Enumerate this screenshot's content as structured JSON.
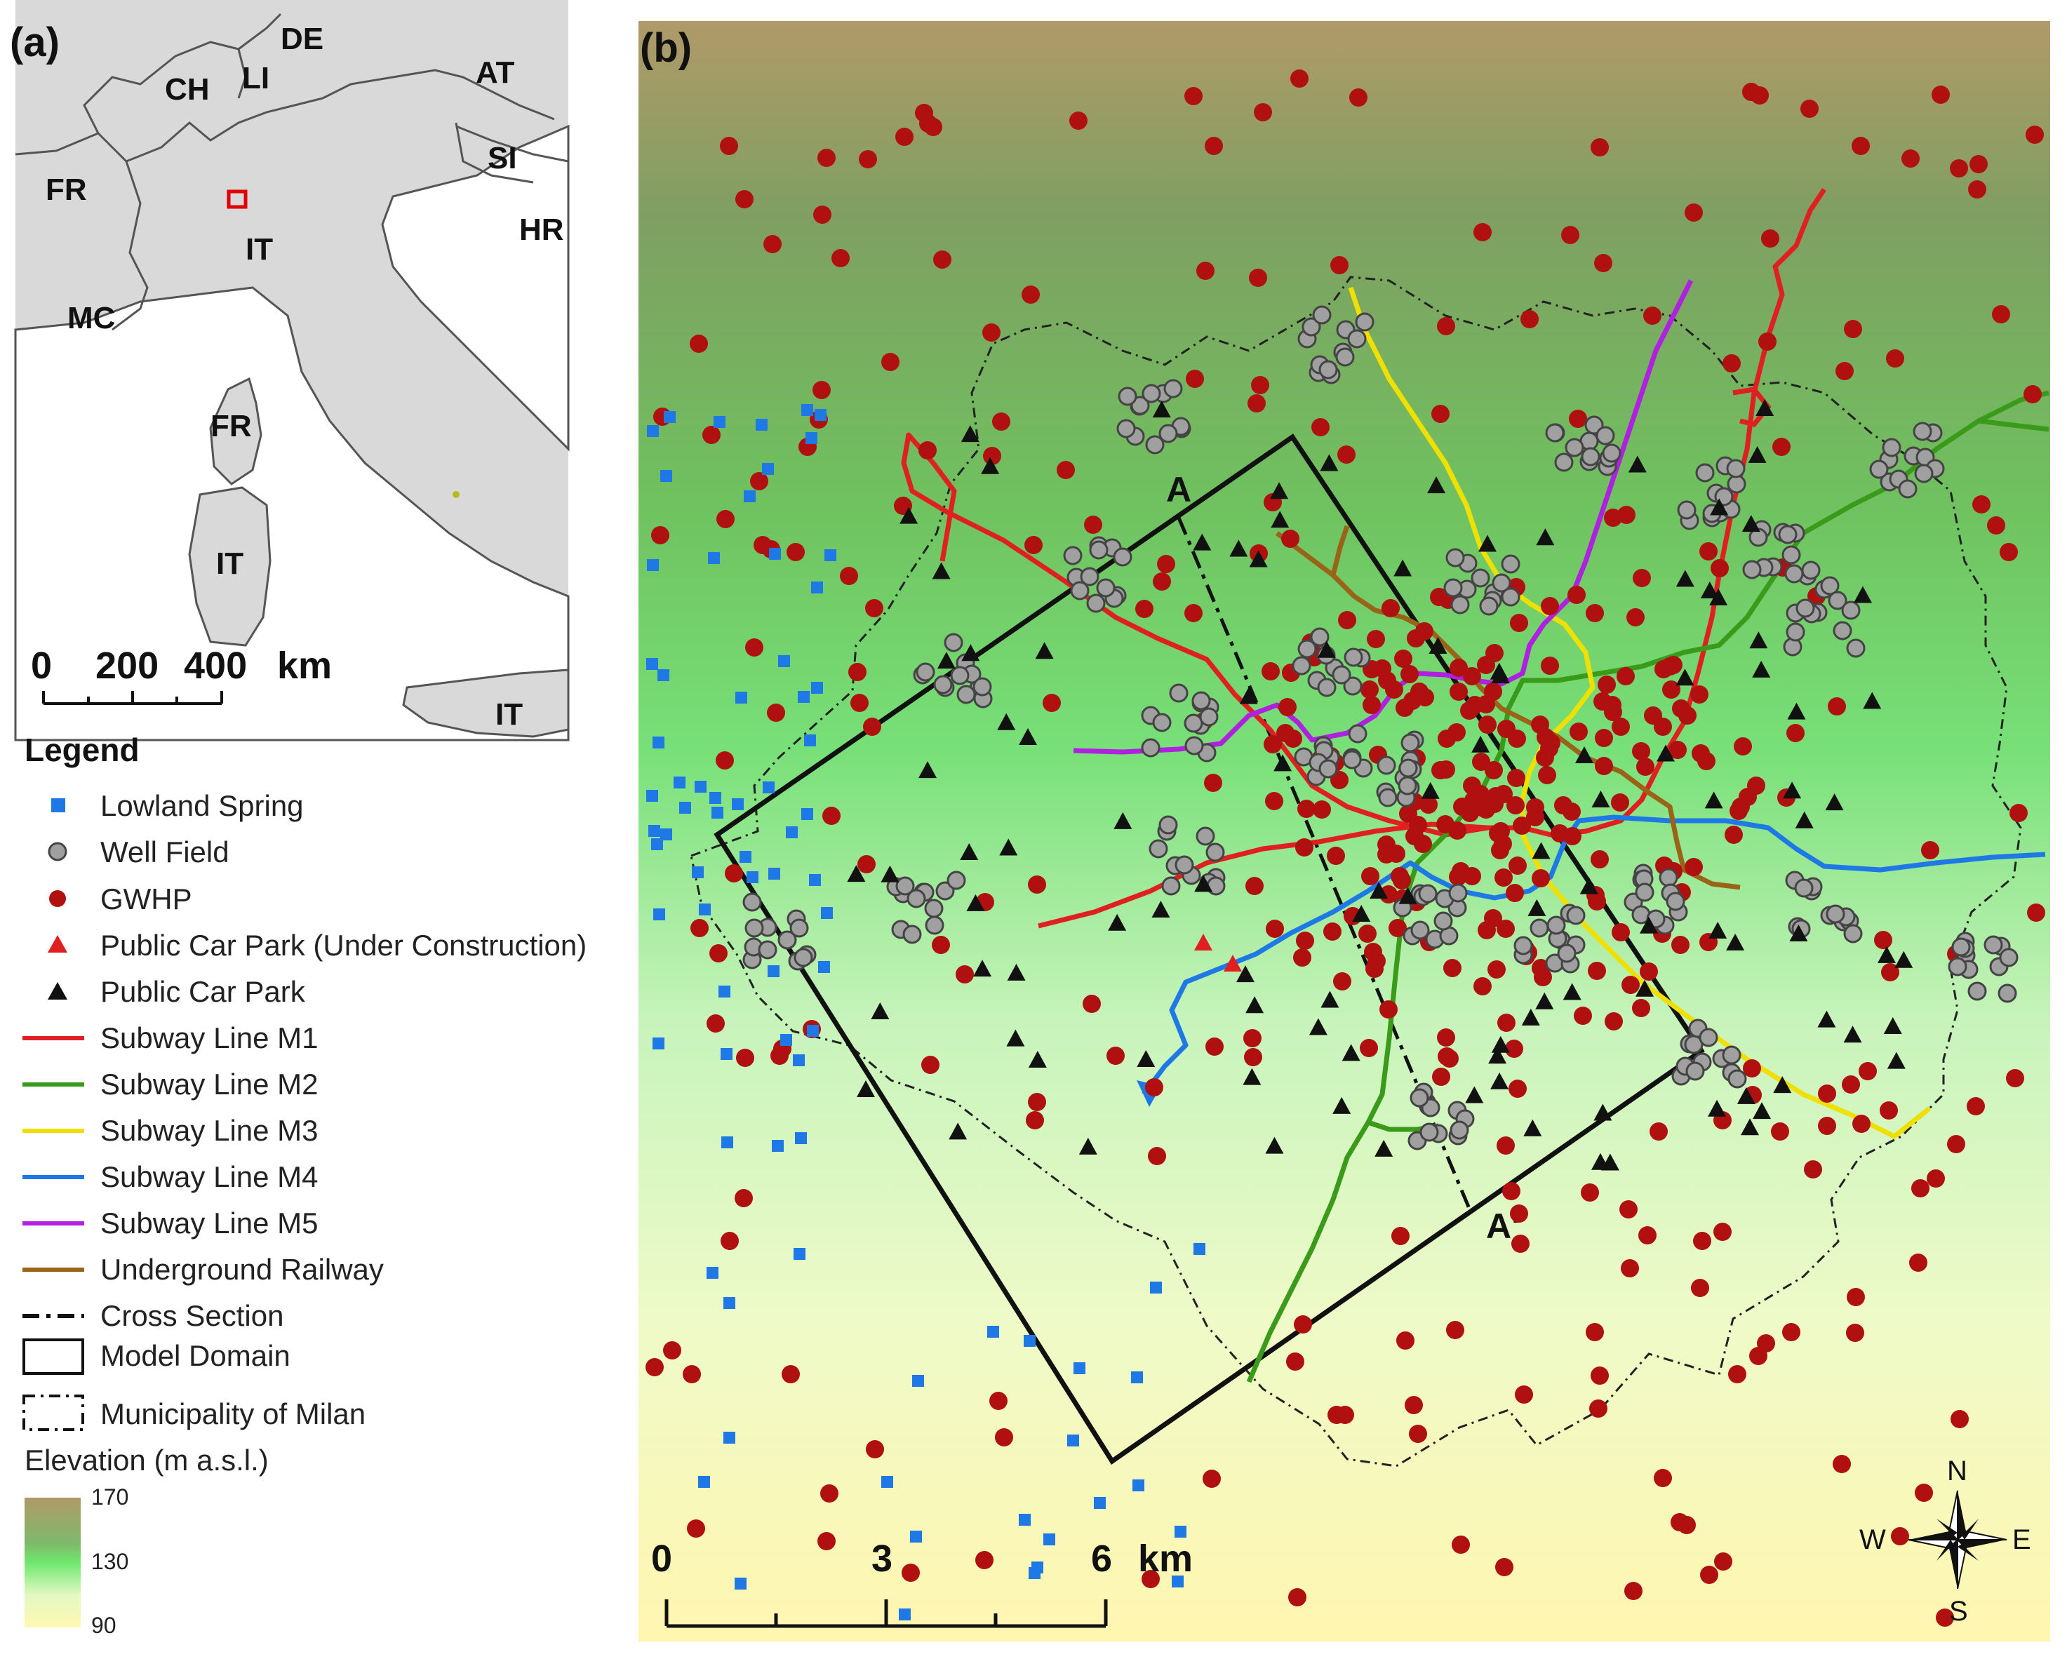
{
  "panels": {
    "a": {
      "tag": "(a)"
    },
    "b": {
      "tag": "(b)"
    }
  },
  "overview_map": {
    "country_labels": [
      "DE",
      "CH",
      "LI",
      "AT",
      "FR",
      "SI",
      "IT",
      "HR",
      "MC",
      "FR",
      "IT",
      "IT"
    ],
    "scale_bar": {
      "ticks": [
        "0",
        "200",
        "400"
      ],
      "unit": "km"
    },
    "study_area_marker_color": "#e00000"
  },
  "legend": {
    "title": "Legend",
    "items": [
      {
        "label": "Lowland Spring",
        "symbol": "square",
        "color": "#1e78e6"
      },
      {
        "label": "Well Field",
        "symbol": "circle-gray",
        "color": "#a0a0a0"
      },
      {
        "label": "GWHP",
        "symbol": "circle",
        "color": "#b01010"
      },
      {
        "label": "Public Car Park (Under Construction)",
        "symbol": "triangle",
        "color": "#e02020"
      },
      {
        "label": "Public Car Park",
        "symbol": "triangle",
        "color": "#111111"
      },
      {
        "label": "Subway Line M1",
        "symbol": "line",
        "color": "#e02020"
      },
      {
        "label": "Subway Line M2",
        "symbol": "line",
        "color": "#3a9a1a"
      },
      {
        "label": "Subway Line M3",
        "symbol": "line",
        "color": "#f0e000"
      },
      {
        "label": "Subway Line M4",
        "symbol": "line",
        "color": "#1e78e6"
      },
      {
        "label": "Subway Line M5",
        "symbol": "line",
        "color": "#b020e0"
      },
      {
        "label": "Underground Railway",
        "symbol": "line",
        "color": "#9a6418"
      },
      {
        "label": "Cross Section",
        "symbol": "dashdot",
        "color": "#111111"
      },
      {
        "label": "Model Domain",
        "symbol": "box",
        "color": "#111111"
      },
      {
        "label": "Municipality of Milan",
        "symbol": "dashbox",
        "color": "#111111"
      }
    ],
    "elevation": {
      "title": "Elevation (m a.s.l.)",
      "max": "170",
      "mid": "130",
      "min": "90",
      "colors": [
        "#b8a070",
        "#8aa870",
        "#6ee86e",
        "#d8f8c0",
        "#fff8b0"
      ]
    }
  },
  "detail_map": {
    "cross_section_labels": {
      "start": "A",
      "end": "A'"
    },
    "scale_bar": {
      "ticks": [
        "0",
        "3",
        "6"
      ],
      "unit": "km"
    },
    "compass": {
      "n": "N",
      "s": "S",
      "e": "E",
      "w": "W"
    }
  }
}
